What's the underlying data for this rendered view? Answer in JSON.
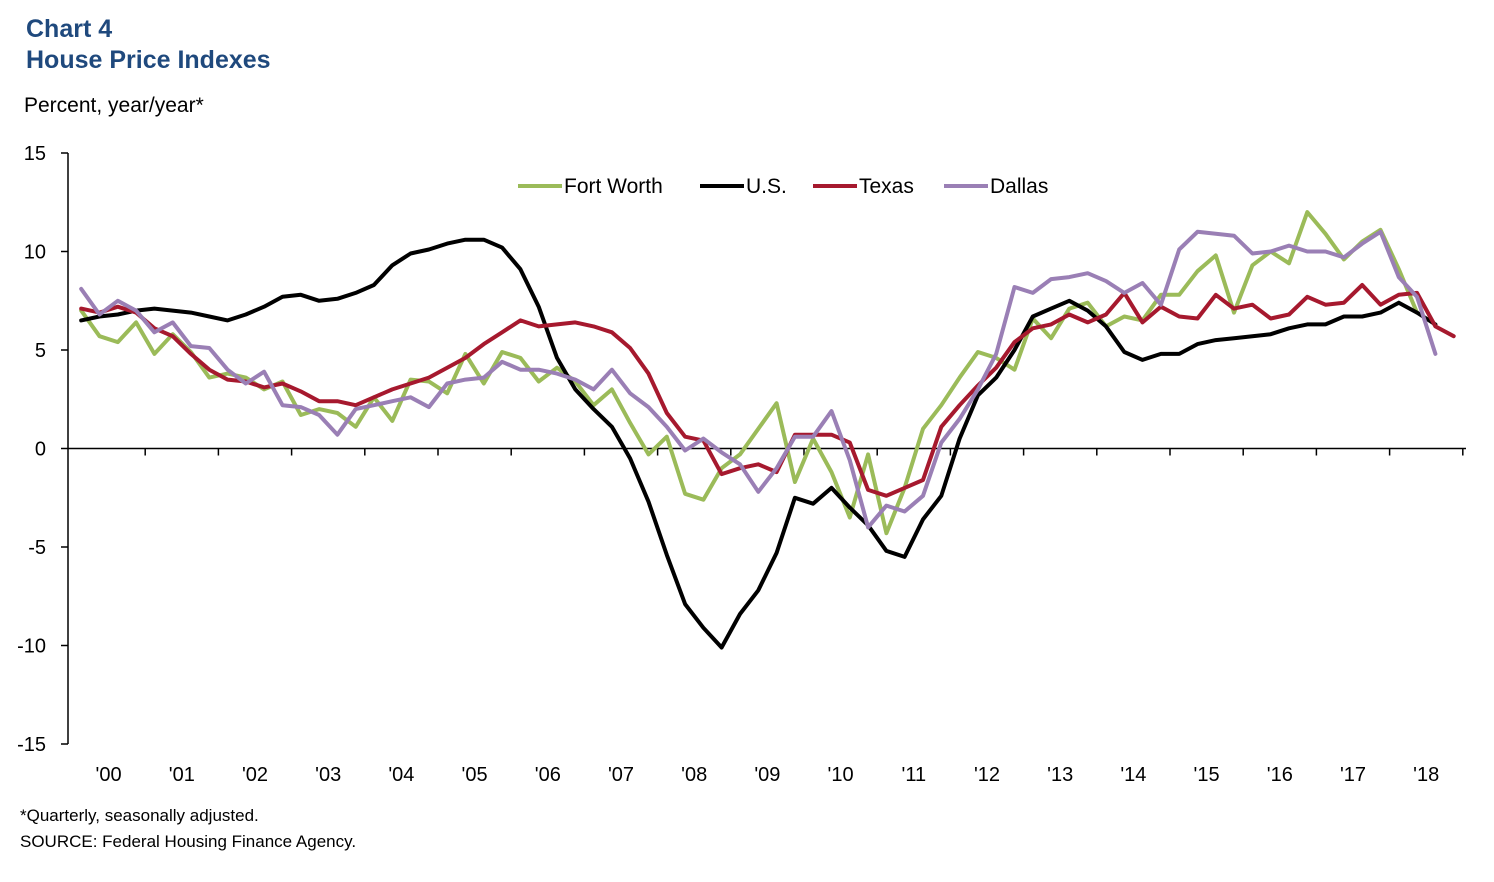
{
  "header": {
    "chart_label": "Chart 4",
    "title": "House Price Indexes",
    "units": "Percent, year/year*"
  },
  "footer": {
    "note": "*Quarterly, seasonally adjusted.",
    "source": "SOURCE: Federal Housing Finance Agency."
  },
  "colors": {
    "fort_worth": "#9bbb59",
    "us": "#000000",
    "texas": "#a6192e",
    "dallas": "#9a7fb5"
  },
  "chart_data": {
    "type": "line",
    "title": "House Price Indexes",
    "ylabel": "Percent, year/year*",
    "xlabel": "",
    "ylim": [
      -15,
      15
    ],
    "yticks": [
      -15,
      -10,
      -5,
      0,
      5,
      10,
      15
    ],
    "xticklabels": [
      "'00",
      "'01",
      "'02",
      "'03",
      "'04",
      "'05",
      "'06",
      "'07",
      "'08",
      "'09",
      "'10",
      "'11",
      "'12",
      "'13",
      "'14",
      "'15",
      "'16",
      "'17",
      "'18"
    ],
    "legend_position": "top-center",
    "x_start": "2000 Q1",
    "frequency": "quarterly",
    "series": [
      {
        "name": "Fort Worth",
        "color_key": "fort_worth",
        "values": [
          7.0,
          5.7,
          5.4,
          6.4,
          4.8,
          5.8,
          4.9,
          3.6,
          3.8,
          3.6,
          3.0,
          3.4,
          1.7,
          2.0,
          1.8,
          1.1,
          2.6,
          1.4,
          3.5,
          3.4,
          2.8,
          4.8,
          3.3,
          4.9,
          4.6,
          3.4,
          4.1,
          3.4,
          2.2,
          3.0,
          1.3,
          -0.3,
          0.6,
          -2.3,
          -2.6,
          -1.0,
          -0.3,
          1.0,
          2.3,
          -1.7,
          0.5,
          -1.2,
          -3.5,
          -0.3,
          -4.3,
          -2.0,
          1.0,
          2.2,
          3.6,
          4.9,
          4.6,
          4.0,
          6.6,
          5.6,
          7.1,
          7.4,
          6.2,
          6.7,
          6.5,
          7.8,
          7.8,
          9.0,
          9.8,
          6.9,
          9.3,
          10.0,
          9.4,
          12.0,
          10.9,
          9.6,
          10.5,
          11.1,
          9.1,
          6.9
        ]
      },
      {
        "name": "U.S.",
        "color_key": "us",
        "values": [
          6.5,
          6.7,
          6.8,
          7.0,
          7.1,
          7.0,
          6.9,
          6.7,
          6.5,
          6.8,
          7.2,
          7.7,
          7.8,
          7.5,
          7.6,
          7.9,
          8.3,
          9.3,
          9.9,
          10.1,
          10.4,
          10.6,
          10.6,
          10.2,
          9.1,
          7.2,
          4.6,
          3.0,
          2.0,
          1.1,
          -0.5,
          -2.7,
          -5.4,
          -7.9,
          -9.1,
          -10.1,
          -8.4,
          -7.2,
          -5.3,
          -2.5,
          -2.8,
          -2.0,
          -3.0,
          -3.9,
          -5.2,
          -5.5,
          -3.6,
          -2.4,
          0.5,
          2.7,
          3.6,
          5.0,
          6.7,
          7.1,
          7.5,
          7.0,
          6.2,
          4.9,
          4.5,
          4.8,
          4.8,
          5.3,
          5.5,
          5.6,
          5.7,
          5.8,
          6.1,
          6.3,
          6.3,
          6.7,
          6.7,
          6.9,
          7.4,
          6.9,
          6.3
        ]
      },
      {
        "name": "Texas",
        "color_key": "texas",
        "values": [
          7.1,
          6.9,
          7.2,
          6.9,
          6.1,
          5.7,
          4.8,
          4.0,
          3.5,
          3.4,
          3.1,
          3.3,
          2.9,
          2.4,
          2.4,
          2.2,
          2.6,
          3.0,
          3.3,
          3.6,
          4.1,
          4.6,
          5.3,
          5.9,
          6.5,
          6.2,
          6.3,
          6.4,
          6.2,
          5.9,
          5.1,
          3.8,
          1.8,
          0.6,
          0.4,
          -1.3,
          -1.0,
          -0.8,
          -1.2,
          0.7,
          0.7,
          0.7,
          0.3,
          -2.1,
          -2.4,
          -2.0,
          -1.6,
          1.1,
          2.2,
          3.2,
          4.1,
          5.4,
          6.1,
          6.3,
          6.8,
          6.4,
          6.8,
          7.9,
          6.4,
          7.2,
          6.7,
          6.6,
          7.8,
          7.1,
          7.3,
          6.6,
          6.8,
          7.7,
          7.3,
          7.4,
          8.3,
          7.3,
          7.8,
          7.9,
          6.2,
          5.7
        ]
      },
      {
        "name": "Dallas",
        "color_key": "dallas",
        "values": [
          8.1,
          6.8,
          7.5,
          7.0,
          5.9,
          6.4,
          5.2,
          5.1,
          4.0,
          3.3,
          3.9,
          2.2,
          2.1,
          1.7,
          0.7,
          2.0,
          2.2,
          2.4,
          2.6,
          2.1,
          3.3,
          3.5,
          3.6,
          4.4,
          4.0,
          4.0,
          3.8,
          3.5,
          3.0,
          4.0,
          2.8,
          2.1,
          1.1,
          -0.1,
          0.5,
          -0.2,
          -0.8,
          -2.2,
          -1.0,
          0.6,
          0.6,
          1.9,
          -0.6,
          -4.0,
          -2.9,
          -3.2,
          -2.4,
          0.3,
          1.5,
          3.0,
          4.8,
          8.2,
          7.9,
          8.6,
          8.7,
          8.9,
          8.5,
          7.9,
          8.4,
          7.3,
          10.1,
          11.0,
          10.9,
          10.8,
          9.9,
          10.0,
          10.3,
          10.0,
          10.0,
          9.7,
          10.4,
          11.0,
          8.7,
          7.7,
          4.8
        ]
      }
    ]
  }
}
